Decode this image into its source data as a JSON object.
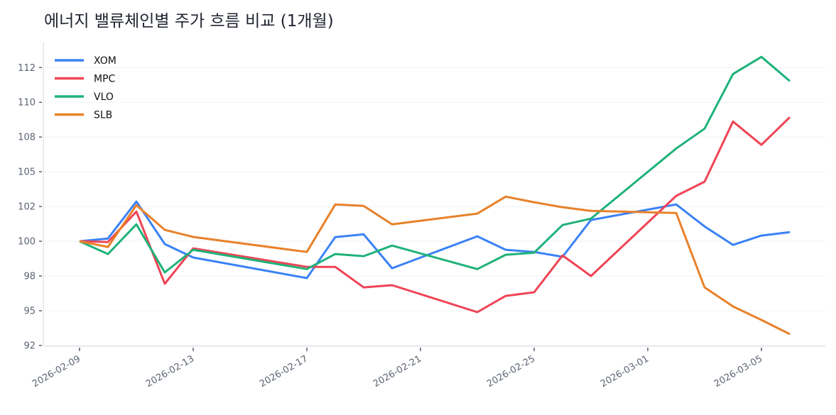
{
  "chart_data": {
    "type": "line",
    "title": "에너지 밸류체인별 주가 흐름 비교 (1개월)",
    "xlabel": "",
    "ylabel": "",
    "x": [
      "2026-02-09",
      "2026-02-10",
      "2026-02-11",
      "2026-02-12",
      "2026-02-13",
      "2026-02-17",
      "2026-02-18",
      "2026-02-19",
      "2026-02-20",
      "2026-02-23",
      "2026-02-24",
      "2026-02-25",
      "2026-02-26",
      "2026-02-27",
      "2026-03-02",
      "2026-03-03",
      "2026-03-04",
      "2026-03-05",
      "2026-03-06"
    ],
    "x_ticks": [
      "2026-02-09",
      "2026-02-13",
      "2026-02-17",
      "2026-02-21",
      "2026-02-25",
      "2026-03-01",
      "2026-03-05"
    ],
    "y_ticks": [
      92.5,
      95,
      97.5,
      100,
      102.5,
      105,
      107.5,
      110,
      112.5
    ],
    "y_tick_labels": [
      "92",
      "95",
      "98",
      "100",
      "102",
      "105",
      "108",
      "110",
      "112"
    ],
    "ylim": [
      92.45,
      114.3
    ],
    "xlim": [
      "2026-02-07T17:24",
      "2026-03-07T06:00"
    ],
    "grid": "horizontal",
    "legend": "top-left",
    "series": [
      {
        "name": "XOM",
        "color": "#3b82f6",
        "values": [
          100,
          100.2,
          102.86,
          99.8,
          98.83,
          97.35,
          100.3,
          100.5,
          98.06,
          100.36,
          99.39,
          99.23,
          98.88,
          101.53,
          102.65,
          101.07,
          99.74,
          100.41,
          100.66
        ]
      },
      {
        "name": "MPC",
        "color": "#ef4455",
        "values": [
          100,
          99.95,
          102.14,
          96.94,
          99.49,
          98.16,
          98.16,
          96.68,
          96.84,
          94.9,
          96.07,
          96.33,
          98.98,
          97.5,
          103.27,
          104.29,
          108.62,
          106.94,
          108.93
        ]
      },
      {
        "name": "VLO",
        "color": "#1fb27a",
        "values": [
          100,
          99.08,
          101.22,
          97.76,
          99.39,
          98.0,
          99.08,
          98.93,
          99.69,
          98.0,
          99.03,
          99.18,
          101.17,
          101.63,
          106.68,
          108.11,
          112.04,
          113.27,
          111.53
        ]
      },
      {
        "name": "SLB",
        "color": "#e8812a",
        "values": [
          100,
          99.59,
          102.6,
          100.82,
          100.31,
          99.23,
          102.65,
          102.55,
          101.22,
          101.99,
          103.21,
          102.81,
          102.45,
          102.19,
          102.04,
          96.68,
          95.31,
          94.34,
          93.32
        ]
      }
    ]
  }
}
